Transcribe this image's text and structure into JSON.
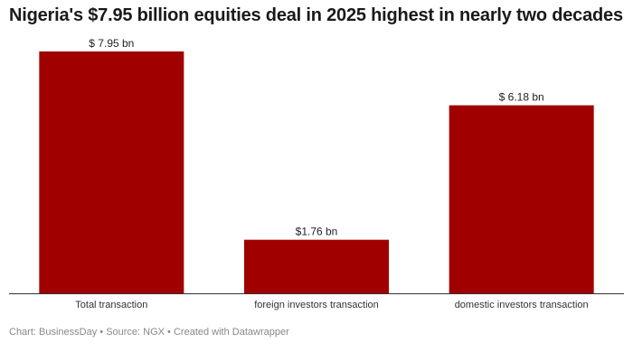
{
  "title": "Nigeria's $7.95 billion equities deal in 2025 highest in nearly two decades",
  "footer": {
    "chart_credit": "Chart: BusinessDay",
    "source": "Source: NGX",
    "created_with": "Created with Datawrapper",
    "separator": " • "
  },
  "colors": {
    "bar": "#a00000",
    "axis": "#333333"
  },
  "chart_data": {
    "type": "bar",
    "categories": [
      "Total transaction",
      "foreign investors transaction",
      "domestic investors transaction"
    ],
    "values": [
      7.95,
      1.76,
      6.18
    ],
    "data_labels": [
      "$ 7.95 bn",
      "$1.76 bn",
      "$ 6.18 bn"
    ],
    "ylim": [
      0,
      7.95
    ],
    "grid": false,
    "legend": "none"
  }
}
